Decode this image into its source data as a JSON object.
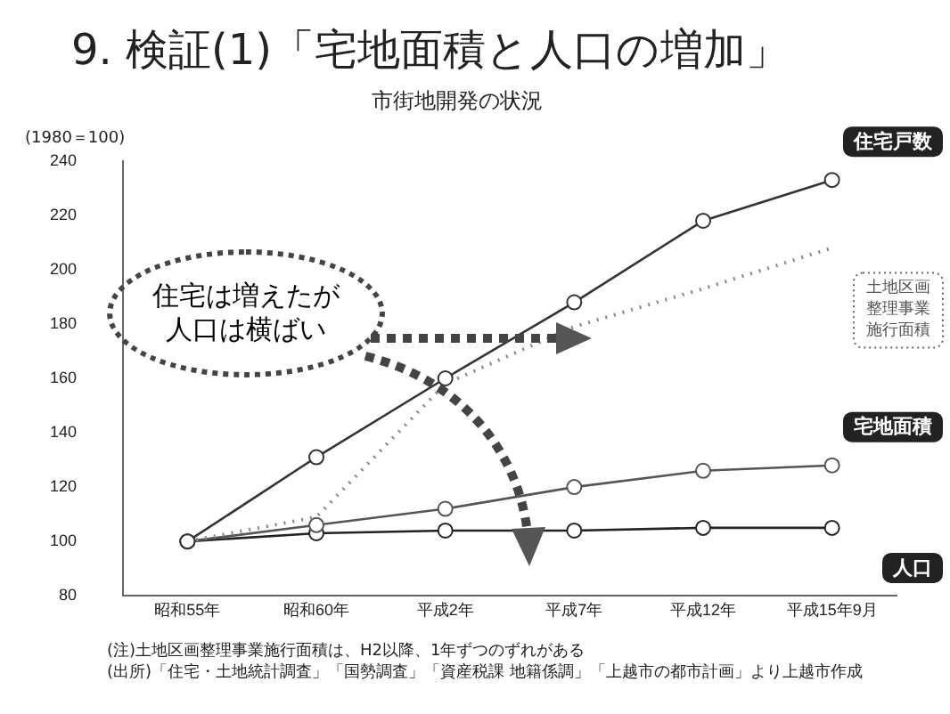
{
  "chart_data": {
    "type": "line",
    "title": "9. 検証(1)「宅地面積と人口の増加」",
    "subtitle": "市街地開発の状況",
    "ylabel": "(1980＝100)",
    "categories": [
      "昭和55年",
      "昭和60年",
      "平成2年",
      "平成7年",
      "平成12年",
      "平成15年9月"
    ],
    "series": [
      {
        "name": "住宅戸数",
        "color": "#333333",
        "values": [
          100,
          131,
          160,
          188,
          218,
          233
        ]
      },
      {
        "name": "土地区画整理事業施行面積",
        "color": "#888888",
        "line_style": "dotted",
        "marker": "none",
        "values": [
          100,
          109,
          158,
          179,
          193,
          208
        ]
      },
      {
        "name": "宅地面積",
        "color": "#555555",
        "values": [
          100,
          106,
          112,
          120,
          126,
          128
        ]
      },
      {
        "name": "人口",
        "color": "#222222",
        "values": [
          100,
          103,
          104,
          104,
          105,
          105
        ]
      }
    ],
    "ylim": [
      80,
      240
    ],
    "yticks": [
      80,
      100,
      120,
      140,
      160,
      180,
      200,
      220,
      240
    ],
    "grid": false,
    "legend": false,
    "marker": "circle",
    "line_style": "solid",
    "annotations": [
      "住宅は増えたが",
      "人口は横ばい",
      "(注)土地区画整理事業施行面積は、H2以降、1年ずつのずれがある",
      "(出所)「住宅・土地統計調査」「国勢調査」「資産税課 地籍係調」「上越市の都市計画」より上越市作成"
    ]
  }
}
